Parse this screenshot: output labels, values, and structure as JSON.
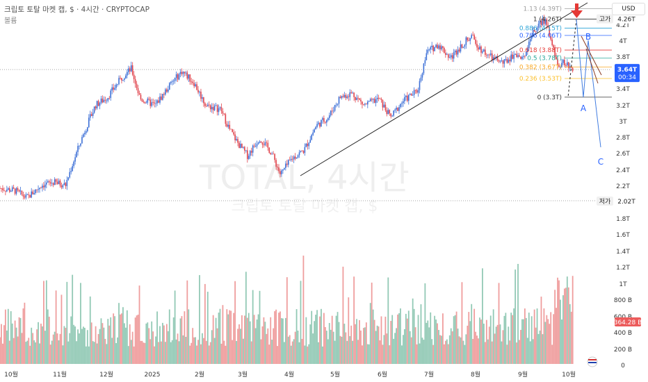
{
  "header": {
    "title": "크립토 토탈 마켓 캡, $ · 4시간 · CRYPTOCAP",
    "volume_label": "볼륨"
  },
  "currency_button": "USD",
  "watermark": {
    "main": "TOTAL, 4시간",
    "sub": "크립토 토탈 마켓 캡, $"
  },
  "colors": {
    "up": "#3c6fd6",
    "down": "#e0424b",
    "vol_up": "#7fbfa8",
    "vol_down": "#ec8c8c",
    "accent": "#2962ff",
    "arrow": "#e53935"
  },
  "chart_data": {
    "type": "candlestick",
    "price_axis": {
      "ticks": [
        "4.2T",
        "4T",
        "3.8T",
        "3.6T",
        "3.4T",
        "3.2T",
        "3T",
        "2.8T",
        "2.6T",
        "2.4T",
        "2.2T",
        "2T",
        "1.8T",
        "1.6T",
        "1.4T",
        "1.2T",
        "1T",
        "800 B",
        "600 B",
        "400 B",
        "200 B",
        "0"
      ],
      "ylim_price": [
        1.9,
        4.4
      ]
    },
    "time_axis": {
      "ticks": [
        "10월",
        "11월",
        "12월",
        "2025",
        "2월",
        "3월",
        "4월",
        "5월",
        "6월",
        "7월",
        "8월",
        "9월",
        "10월"
      ]
    },
    "price_anchors": [
      {
        "t": 0,
        "v": 2.18
      },
      {
        "t": 0.025,
        "v": 2.15
      },
      {
        "t": 0.045,
        "v": 2.06
      },
      {
        "t": 0.07,
        "v": 2.22
      },
      {
        "t": 0.09,
        "v": 2.25
      },
      {
        "t": 0.11,
        "v": 2.22
      },
      {
        "t": 0.125,
        "v": 2.55
      },
      {
        "t": 0.14,
        "v": 2.85
      },
      {
        "t": 0.16,
        "v": 3.2
      },
      {
        "t": 0.18,
        "v": 3.3
      },
      {
        "t": 0.205,
        "v": 3.55
      },
      {
        "t": 0.22,
        "v": 3.65
      },
      {
        "t": 0.235,
        "v": 3.28
      },
      {
        "t": 0.26,
        "v": 3.2
      },
      {
        "t": 0.285,
        "v": 3.45
      },
      {
        "t": 0.305,
        "v": 3.62
      },
      {
        "t": 0.325,
        "v": 3.48
      },
      {
        "t": 0.345,
        "v": 3.2
      },
      {
        "t": 0.37,
        "v": 3.15
      },
      {
        "t": 0.385,
        "v": 2.9
      },
      {
        "t": 0.4,
        "v": 2.72
      },
      {
        "t": 0.415,
        "v": 2.58
      },
      {
        "t": 0.435,
        "v": 2.8
      },
      {
        "t": 0.455,
        "v": 2.62
      },
      {
        "t": 0.47,
        "v": 2.35
      },
      {
        "t": 0.49,
        "v": 2.55
      },
      {
        "t": 0.51,
        "v": 2.65
      },
      {
        "t": 0.53,
        "v": 2.95
      },
      {
        "t": 0.55,
        "v": 3.05
      },
      {
        "t": 0.57,
        "v": 3.3
      },
      {
        "t": 0.59,
        "v": 3.35
      },
      {
        "t": 0.61,
        "v": 3.2
      },
      {
        "t": 0.635,
        "v": 3.28
      },
      {
        "t": 0.655,
        "v": 3.05
      },
      {
        "t": 0.675,
        "v": 3.25
      },
      {
        "t": 0.7,
        "v": 3.38
      },
      {
        "t": 0.715,
        "v": 3.85
      },
      {
        "t": 0.735,
        "v": 3.95
      },
      {
        "t": 0.755,
        "v": 3.78
      },
      {
        "t": 0.775,
        "v": 3.95
      },
      {
        "t": 0.79,
        "v": 4.05
      },
      {
        "t": 0.805,
        "v": 3.9
      },
      {
        "t": 0.825,
        "v": 3.78
      },
      {
        "t": 0.845,
        "v": 3.72
      },
      {
        "t": 0.865,
        "v": 3.85
      },
      {
        "t": 0.875,
        "v": 3.75
      },
      {
        "t": 0.89,
        "v": 4.05
      },
      {
        "t": 0.905,
        "v": 4.2
      },
      {
        "t": 0.915,
        "v": 4.26
      },
      {
        "t": 0.925,
        "v": 3.95
      },
      {
        "t": 0.935,
        "v": 3.7
      },
      {
        "t": 0.945,
        "v": 3.72
      },
      {
        "t": 0.96,
        "v": 3.64
      }
    ],
    "fib_levels": [
      {
        "label": "1.13 (4.39T)",
        "value": 4.39,
        "color": "#9e9e9e"
      },
      {
        "label": "1 (4.26T)",
        "value": 4.26,
        "color": "#333333"
      },
      {
        "label": "0.886 (4.15T)",
        "value": 4.15,
        "color": "#29a3d6"
      },
      {
        "label": "0.786 (4.06T)",
        "value": 4.06,
        "color": "#2962ff"
      },
      {
        "label": "0.618 (3.88T)",
        "value": 3.88,
        "color": "#e53935"
      },
      {
        "label": "0.5 (3.78T)",
        "value": 3.78,
        "color": "#26a69a"
      },
      {
        "label": "0.382 (3.67T)",
        "value": 3.67,
        "color": "#f9a825"
      },
      {
        "label": "0.236 (3.53T)",
        "value": 3.53,
        "color": "#fbc02d"
      },
      {
        "label": "0 (3.3T)",
        "value": 3.3,
        "color": "#333333"
      }
    ],
    "wave_labels": [
      "A",
      "B",
      "C"
    ],
    "markers": {
      "high": {
        "label": "고가",
        "value_text": "4.26T",
        "value": 4.26
      },
      "low": {
        "label": "저가",
        "value_text": "2.02T",
        "value": 2.02
      },
      "last": {
        "value_text": "3.64T",
        "countdown": "00:34",
        "value": 3.64
      },
      "last_volume": {
        "value_text": "364.28 B"
      }
    }
  }
}
